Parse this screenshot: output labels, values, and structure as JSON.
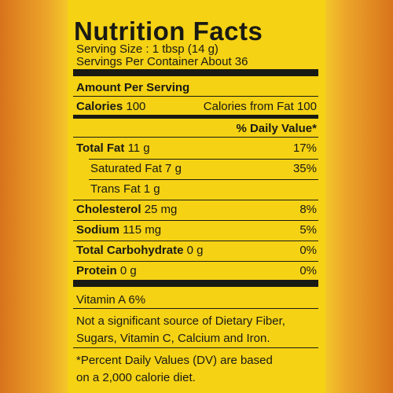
{
  "title": "Nutrition Facts",
  "serving_size": "Serving Size : 1 tbsp (14 g)",
  "servings_per_container": "Servings Per Container About 36",
  "amount_per_serving": "Amount Per Serving",
  "calories": {
    "label": "Calories",
    "value": "100",
    "from_fat": "Calories from Fat 100"
  },
  "daily_value_header": "% Daily Value*",
  "rows": [
    {
      "label": "Total Fat",
      "amount": "11 g",
      "dv": "17%"
    },
    {
      "label": "Saturated Fat 7 g",
      "dv": "35%"
    },
    {
      "label": "Trans Fat 1 g"
    },
    {
      "label": "Cholesterol",
      "amount": "25 mg",
      "dv": "8%"
    },
    {
      "label": "Sodium",
      "amount": "115 mg",
      "dv": "5%"
    },
    {
      "label": "Total Carbohydrate",
      "amount": "0 g",
      "dv": "0%"
    },
    {
      "label": "Protein",
      "amount": "0 g",
      "dv": "0%"
    }
  ],
  "vitamins": "Vitamin A 6%",
  "note": [
    "Not a significant source of Dietary Fiber,",
    "Sugars, Vitamin C, Calcium and Iron."
  ],
  "footnote": [
    "*Percent Daily Values (DV) are based",
    "on a 2,000 calorie diet."
  ]
}
